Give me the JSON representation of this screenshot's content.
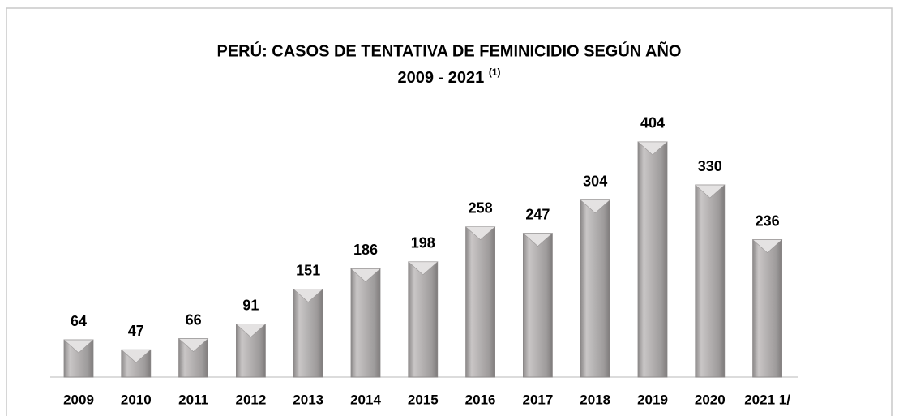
{
  "chart_data": {
    "type": "bar",
    "title": "PERÚ: CASOS DE TENTATIVA DE FEMINICIDIO SEGÚN AÑO",
    "subtitle": "2009 - 2021",
    "subtitle_note": "(1)",
    "categories": [
      "2009",
      "2010",
      "2011",
      "2012",
      "2013",
      "2014",
      "2015",
      "2016",
      "2017",
      "2018",
      "2019",
      "2020",
      "2021 1/"
    ],
    "values": [
      64,
      47,
      66,
      91,
      151,
      186,
      198,
      258,
      247,
      304,
      404,
      330,
      236
    ],
    "color": "#a6a3a3"
  }
}
